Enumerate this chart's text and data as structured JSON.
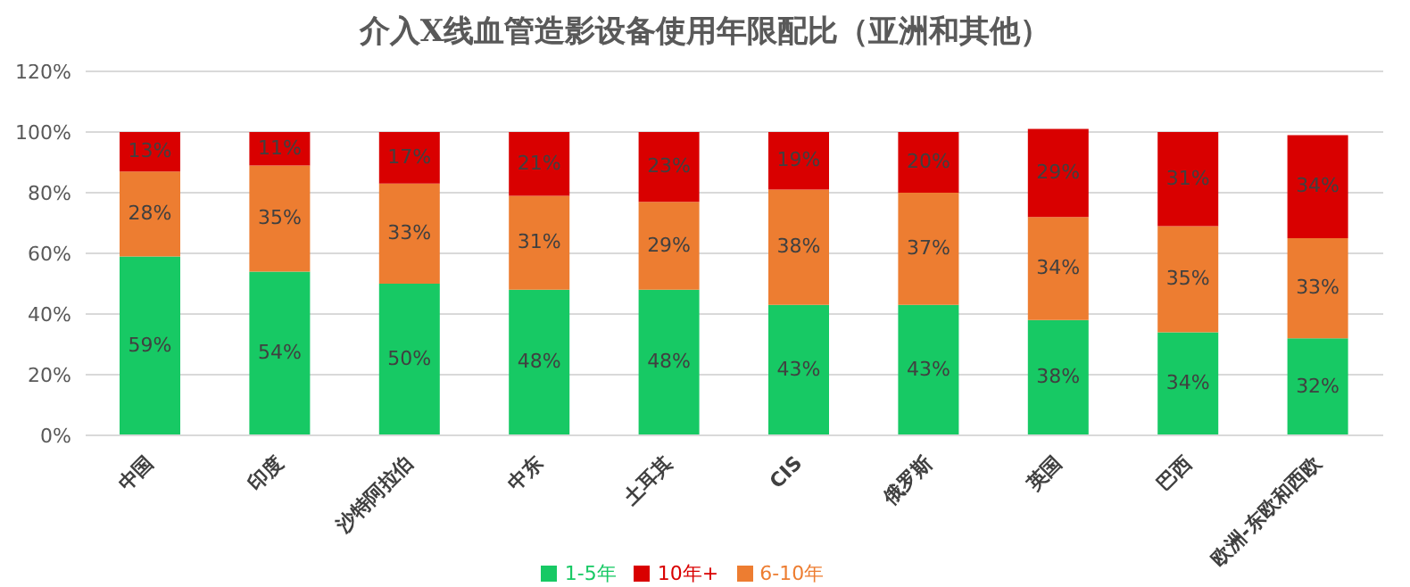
{
  "chart_data": {
    "type": "bar",
    "title": "介入X线血管造影设备使用年限配比（亚洲和其他）",
    "stacked": true,
    "categories": [
      "中国",
      "印度",
      "沙特阿拉伯",
      "中东",
      "土耳其",
      "CIS",
      "俄罗斯",
      "英国",
      "巴西",
      "欧洲-东欧和西欧"
    ],
    "series": [
      {
        "name": "1-5年",
        "color": "#17c964",
        "values": [
          59,
          54,
          50,
          48,
          48,
          43,
          43,
          38,
          34,
          32
        ],
        "value_labels": [
          "59%",
          "54%",
          "50%",
          "48%",
          "48%",
          "43%",
          "43%",
          "38%",
          "34%",
          "32%"
        ]
      },
      {
        "name": "6-10年",
        "color": "#ed7d31",
        "values": [
          28,
          35,
          33,
          31,
          29,
          38,
          37,
          34,
          35,
          33
        ],
        "value_labels": [
          "28%",
          "35%",
          "33%",
          "31%",
          "29%",
          "38%",
          "37%",
          "34%",
          "35%",
          "33%"
        ]
      },
      {
        "name": "10年+",
        "color": "#d90000",
        "values": [
          13,
          11,
          17,
          21,
          23,
          19,
          20,
          29,
          31,
          34
        ],
        "value_labels": [
          "13%",
          "11%",
          "17%",
          "21%",
          "23%",
          "19%",
          "20%",
          "29%",
          "31%",
          "34%"
        ]
      }
    ],
    "ylim": [
      0,
      120
    ],
    "yticks": [
      {
        "value": 0,
        "label": "0%"
      },
      {
        "value": 20,
        "label": "20%"
      },
      {
        "value": 40,
        "label": "40%"
      },
      {
        "value": 60,
        "label": "60%"
      },
      {
        "value": 80,
        "label": "80%"
      },
      {
        "value": 100,
        "label": "100%"
      },
      {
        "value": 120,
        "label": "120%"
      }
    ],
    "grid": "y",
    "legend": "bottom"
  }
}
